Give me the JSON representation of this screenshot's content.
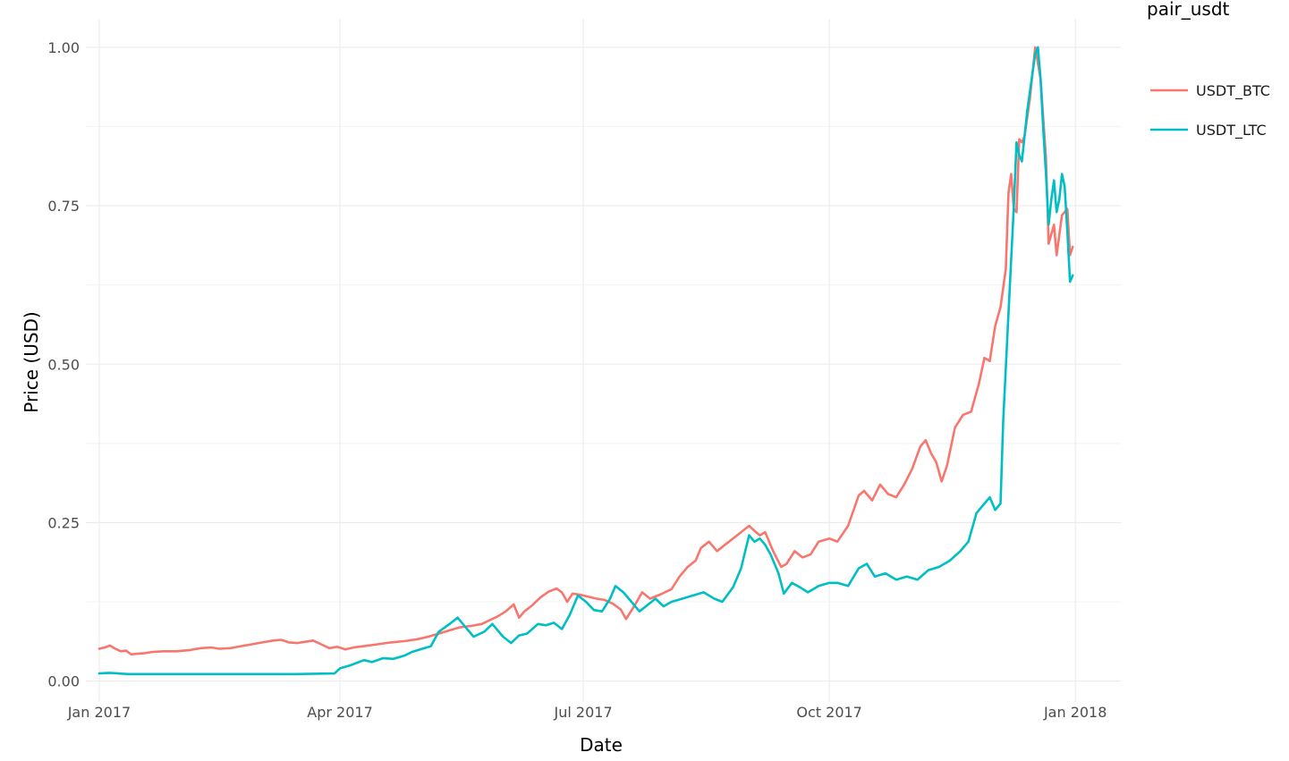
{
  "chart_data": {
    "type": "line",
    "title": "",
    "xlabel": "Date",
    "ylabel": "Price (USD)",
    "x_ticks": [
      "Jan 2017",
      "Apr 2017",
      "Jul 2017",
      "Oct 2017",
      "Jan 2018"
    ],
    "x_tick_dates": [
      "2017-01-01",
      "2017-04-01",
      "2017-07-01",
      "2017-10-01",
      "2018-01-01"
    ],
    "y_ticks": [
      "0.00",
      "0.25",
      "0.50",
      "0.75",
      "1.00"
    ],
    "y_tick_values": [
      0,
      0.25,
      0.5,
      0.75,
      1.0
    ],
    "xlim": [
      "2016-12-27",
      "2018-01-18"
    ],
    "ylim": [
      -0.033,
      1.045
    ],
    "grid": true,
    "legend": {
      "title": "pair_usdt",
      "placement": "right"
    },
    "series": [
      {
        "name": "USDT_BTC",
        "color": "#F8766D",
        "points": [
          [
            "2017-01-01",
            0.051
          ],
          [
            "2017-01-03",
            0.053
          ],
          [
            "2017-01-05",
            0.056
          ],
          [
            "2017-01-07",
            0.051
          ],
          [
            "2017-01-09",
            0.047
          ],
          [
            "2017-01-11",
            0.048
          ],
          [
            "2017-01-13",
            0.042
          ],
          [
            "2017-01-15",
            0.043
          ],
          [
            "2017-01-18",
            0.044
          ],
          [
            "2017-01-21",
            0.046
          ],
          [
            "2017-01-25",
            0.047
          ],
          [
            "2017-01-30",
            0.047
          ],
          [
            "2017-02-04",
            0.049
          ],
          [
            "2017-02-08",
            0.052
          ],
          [
            "2017-02-12",
            0.053
          ],
          [
            "2017-02-15",
            0.051
          ],
          [
            "2017-02-19",
            0.052
          ],
          [
            "2017-02-23",
            0.055
          ],
          [
            "2017-02-27",
            0.058
          ],
          [
            "2017-03-03",
            0.061
          ],
          [
            "2017-03-07",
            0.064
          ],
          [
            "2017-03-10",
            0.065
          ],
          [
            "2017-03-13",
            0.061
          ],
          [
            "2017-03-16",
            0.06
          ],
          [
            "2017-03-19",
            0.062
          ],
          [
            "2017-03-22",
            0.064
          ],
          [
            "2017-03-25",
            0.058
          ],
          [
            "2017-03-28",
            0.052
          ],
          [
            "2017-03-31",
            0.054
          ],
          [
            "2017-04-03",
            0.05
          ],
          [
            "2017-04-06",
            0.053
          ],
          [
            "2017-04-10",
            0.055
          ],
          [
            "2017-04-15",
            0.058
          ],
          [
            "2017-04-20",
            0.061
          ],
          [
            "2017-04-25",
            0.063
          ],
          [
            "2017-04-30",
            0.066
          ],
          [
            "2017-05-04",
            0.07
          ],
          [
            "2017-05-08",
            0.075
          ],
          [
            "2017-05-12",
            0.08
          ],
          [
            "2017-05-16",
            0.085
          ],
          [
            "2017-05-20",
            0.087
          ],
          [
            "2017-05-24",
            0.09
          ],
          [
            "2017-05-27",
            0.096
          ],
          [
            "2017-05-30",
            0.102
          ],
          [
            "2017-06-02",
            0.11
          ],
          [
            "2017-06-05",
            0.121
          ],
          [
            "2017-06-07",
            0.1
          ],
          [
            "2017-06-09",
            0.11
          ],
          [
            "2017-06-12",
            0.12
          ],
          [
            "2017-06-15",
            0.132
          ],
          [
            "2017-06-18",
            0.141
          ],
          [
            "2017-06-21",
            0.146
          ],
          [
            "2017-06-23",
            0.14
          ],
          [
            "2017-06-25",
            0.125
          ],
          [
            "2017-06-27",
            0.138
          ],
          [
            "2017-06-30",
            0.136
          ],
          [
            "2017-07-03",
            0.133
          ],
          [
            "2017-07-06",
            0.13
          ],
          [
            "2017-07-09",
            0.128
          ],
          [
            "2017-07-12",
            0.122
          ],
          [
            "2017-07-15",
            0.113
          ],
          [
            "2017-07-17",
            0.098
          ],
          [
            "2017-07-20",
            0.118
          ],
          [
            "2017-07-23",
            0.14
          ],
          [
            "2017-07-26",
            0.13
          ],
          [
            "2017-07-30",
            0.137
          ],
          [
            "2017-08-03",
            0.145
          ],
          [
            "2017-08-06",
            0.165
          ],
          [
            "2017-08-09",
            0.18
          ],
          [
            "2017-08-12",
            0.19
          ],
          [
            "2017-08-14",
            0.21
          ],
          [
            "2017-08-17",
            0.22
          ],
          [
            "2017-08-20",
            0.205
          ],
          [
            "2017-08-23",
            0.215
          ],
          [
            "2017-08-26",
            0.225
          ],
          [
            "2017-08-29",
            0.235
          ],
          [
            "2017-09-01",
            0.245
          ],
          [
            "2017-09-03",
            0.237
          ],
          [
            "2017-09-05",
            0.23
          ],
          [
            "2017-09-07",
            0.235
          ],
          [
            "2017-09-10",
            0.205
          ],
          [
            "2017-09-13",
            0.18
          ],
          [
            "2017-09-15",
            0.185
          ],
          [
            "2017-09-18",
            0.205
          ],
          [
            "2017-09-21",
            0.195
          ],
          [
            "2017-09-24",
            0.2
          ],
          [
            "2017-09-27",
            0.22
          ],
          [
            "2017-10-01",
            0.225
          ],
          [
            "2017-10-04",
            0.22
          ],
          [
            "2017-10-08",
            0.245
          ],
          [
            "2017-10-12",
            0.293
          ],
          [
            "2017-10-14",
            0.3
          ],
          [
            "2017-10-17",
            0.285
          ],
          [
            "2017-10-20",
            0.31
          ],
          [
            "2017-10-23",
            0.295
          ],
          [
            "2017-10-26",
            0.29
          ],
          [
            "2017-10-29",
            0.31
          ],
          [
            "2017-11-01",
            0.335
          ],
          [
            "2017-11-04",
            0.37
          ],
          [
            "2017-11-06",
            0.38
          ],
          [
            "2017-11-08",
            0.36
          ],
          [
            "2017-11-10",
            0.345
          ],
          [
            "2017-11-12",
            0.315
          ],
          [
            "2017-11-14",
            0.34
          ],
          [
            "2017-11-17",
            0.4
          ],
          [
            "2017-11-20",
            0.42
          ],
          [
            "2017-11-23",
            0.425
          ],
          [
            "2017-11-26",
            0.47
          ],
          [
            "2017-11-28",
            0.51
          ],
          [
            "2017-11-30",
            0.505
          ],
          [
            "2017-12-02",
            0.56
          ],
          [
            "2017-12-04",
            0.59
          ],
          [
            "2017-12-06",
            0.65
          ],
          [
            "2017-12-07",
            0.77
          ],
          [
            "2017-12-08",
            0.8
          ],
          [
            "2017-12-09",
            0.745
          ],
          [
            "2017-12-10",
            0.74
          ],
          [
            "2017-12-11",
            0.855
          ],
          [
            "2017-12-12",
            0.85
          ],
          [
            "2017-12-13",
            0.86
          ],
          [
            "2017-12-15",
            0.92
          ],
          [
            "2017-12-17",
            1.0
          ],
          [
            "2017-12-19",
            0.95
          ],
          [
            "2017-12-21",
            0.825
          ],
          [
            "2017-12-22",
            0.69
          ],
          [
            "2017-12-24",
            0.72
          ],
          [
            "2017-12-25",
            0.672
          ],
          [
            "2017-12-27",
            0.735
          ],
          [
            "2017-12-29",
            0.745
          ],
          [
            "2017-12-30",
            0.672
          ],
          [
            "2017-12-31",
            0.685
          ]
        ]
      },
      {
        "name": "USDT_LTC",
        "color": "#00BFC4",
        "points": [
          [
            "2017-01-01",
            0.012
          ],
          [
            "2017-01-05",
            0.013
          ],
          [
            "2017-01-08",
            0.012
          ],
          [
            "2017-01-12",
            0.011
          ],
          [
            "2017-01-20",
            0.011
          ],
          [
            "2017-02-01",
            0.011
          ],
          [
            "2017-02-15",
            0.011
          ],
          [
            "2017-03-01",
            0.011
          ],
          [
            "2017-03-15",
            0.011
          ],
          [
            "2017-03-30",
            0.012
          ],
          [
            "2017-04-01",
            0.02
          ],
          [
            "2017-04-05",
            0.025
          ],
          [
            "2017-04-10",
            0.033
          ],
          [
            "2017-04-13",
            0.03
          ],
          [
            "2017-04-17",
            0.036
          ],
          [
            "2017-04-21",
            0.035
          ],
          [
            "2017-04-25",
            0.04
          ],
          [
            "2017-04-28",
            0.046
          ],
          [
            "2017-05-01",
            0.05
          ],
          [
            "2017-05-05",
            0.055
          ],
          [
            "2017-05-08",
            0.078
          ],
          [
            "2017-05-12",
            0.09
          ],
          [
            "2017-05-15",
            0.1
          ],
          [
            "2017-05-18",
            0.085
          ],
          [
            "2017-05-21",
            0.07
          ],
          [
            "2017-05-25",
            0.078
          ],
          [
            "2017-05-28",
            0.09
          ],
          [
            "2017-06-01",
            0.07
          ],
          [
            "2017-06-04",
            0.06
          ],
          [
            "2017-06-07",
            0.072
          ],
          [
            "2017-06-10",
            0.075
          ],
          [
            "2017-06-14",
            0.09
          ],
          [
            "2017-06-17",
            0.088
          ],
          [
            "2017-06-20",
            0.092
          ],
          [
            "2017-06-23",
            0.082
          ],
          [
            "2017-06-26",
            0.105
          ],
          [
            "2017-06-29",
            0.135
          ],
          [
            "2017-07-02",
            0.125
          ],
          [
            "2017-07-05",
            0.112
          ],
          [
            "2017-07-08",
            0.11
          ],
          [
            "2017-07-11",
            0.13
          ],
          [
            "2017-07-13",
            0.15
          ],
          [
            "2017-07-16",
            0.14
          ],
          [
            "2017-07-19",
            0.125
          ],
          [
            "2017-07-22",
            0.11
          ],
          [
            "2017-07-25",
            0.12
          ],
          [
            "2017-07-28",
            0.13
          ],
          [
            "2017-07-31",
            0.118
          ],
          [
            "2017-08-03",
            0.125
          ],
          [
            "2017-08-07",
            0.13
          ],
          [
            "2017-08-11",
            0.135
          ],
          [
            "2017-08-15",
            0.14
          ],
          [
            "2017-08-19",
            0.13
          ],
          [
            "2017-08-22",
            0.125
          ],
          [
            "2017-08-26",
            0.148
          ],
          [
            "2017-08-29",
            0.178
          ],
          [
            "2017-09-01",
            0.23
          ],
          [
            "2017-09-03",
            0.22
          ],
          [
            "2017-09-05",
            0.225
          ],
          [
            "2017-09-07",
            0.215
          ],
          [
            "2017-09-09",
            0.2
          ],
          [
            "2017-09-12",
            0.17
          ],
          [
            "2017-09-14",
            0.138
          ],
          [
            "2017-09-17",
            0.155
          ],
          [
            "2017-09-20",
            0.148
          ],
          [
            "2017-09-23",
            0.14
          ],
          [
            "2017-09-27",
            0.15
          ],
          [
            "2017-10-01",
            0.155
          ],
          [
            "2017-10-04",
            0.155
          ],
          [
            "2017-10-08",
            0.15
          ],
          [
            "2017-10-12",
            0.178
          ],
          [
            "2017-10-15",
            0.185
          ],
          [
            "2017-10-18",
            0.165
          ],
          [
            "2017-10-22",
            0.17
          ],
          [
            "2017-10-26",
            0.16
          ],
          [
            "2017-10-30",
            0.165
          ],
          [
            "2017-11-03",
            0.16
          ],
          [
            "2017-11-07",
            0.175
          ],
          [
            "2017-11-11",
            0.18
          ],
          [
            "2017-11-15",
            0.19
          ],
          [
            "2017-11-19",
            0.205
          ],
          [
            "2017-11-22",
            0.22
          ],
          [
            "2017-11-25",
            0.265
          ],
          [
            "2017-11-28",
            0.28
          ],
          [
            "2017-11-30",
            0.29
          ],
          [
            "2017-12-02",
            0.27
          ],
          [
            "2017-12-04",
            0.28
          ],
          [
            "2017-12-05",
            0.41
          ],
          [
            "2017-12-07",
            0.58
          ],
          [
            "2017-12-09",
            0.75
          ],
          [
            "2017-12-10",
            0.85
          ],
          [
            "2017-12-11",
            0.83
          ],
          [
            "2017-12-12",
            0.82
          ],
          [
            "2017-12-14",
            0.9
          ],
          [
            "2017-12-16",
            0.96
          ],
          [
            "2017-12-17",
            0.99
          ],
          [
            "2017-12-18",
            1.0
          ],
          [
            "2017-12-19",
            0.95
          ],
          [
            "2017-12-20",
            0.87
          ],
          [
            "2017-12-21",
            0.8
          ],
          [
            "2017-12-22",
            0.72
          ],
          [
            "2017-12-23",
            0.76
          ],
          [
            "2017-12-24",
            0.79
          ],
          [
            "2017-12-25",
            0.74
          ],
          [
            "2017-12-26",
            0.76
          ],
          [
            "2017-12-27",
            0.8
          ],
          [
            "2017-12-28",
            0.78
          ],
          [
            "2017-12-29",
            0.71
          ],
          [
            "2017-12-30",
            0.63
          ],
          [
            "2017-12-31",
            0.64
          ]
        ]
      }
    ]
  }
}
